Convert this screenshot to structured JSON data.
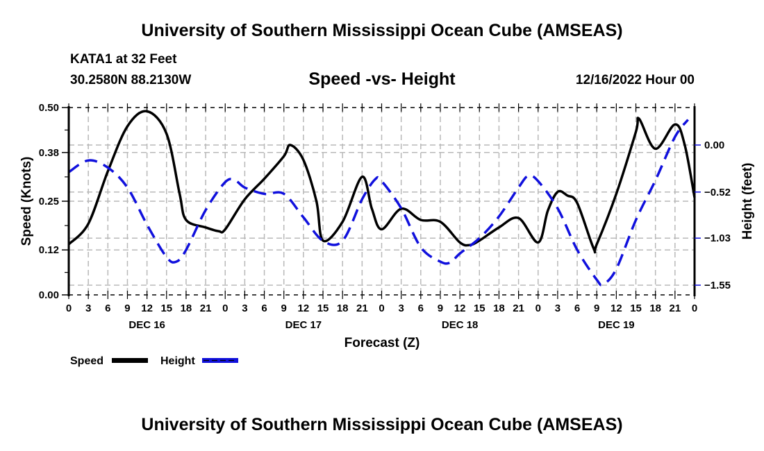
{
  "header": {
    "main_title": "University of Southern Mississippi Ocean Cube (AMSEAS)",
    "station": "KATA1 at 32 Feet",
    "coords": "30.2580N  88.2130W",
    "subtitle": "Speed -vs- Height",
    "datetime": "12/16/2022 Hour 00"
  },
  "footer": {
    "title": "University of Southern Mississippi Ocean Cube (AMSEAS)"
  },
  "colors": {
    "speed": "#000000",
    "height": "#0000cc",
    "grid": "#b8b8b8"
  },
  "chart_data": {
    "type": "line",
    "title": "Speed -vs- Height",
    "xlabel": "Forecast (Z)",
    "ylabel": "Speed (Knots)",
    "y2label": "Height (feet)",
    "grid": true,
    "legend_position": "bottom-left",
    "x_unit": "forecast hour from 12/16/2022 00Z",
    "xlim": [
      0,
      96
    ],
    "ylim": [
      0,
      0.5
    ],
    "y2lim": [
      -1.55,
      0.0
    ],
    "x_ticks": [
      0,
      3,
      6,
      9,
      12,
      15,
      18,
      21,
      24,
      27,
      30,
      33,
      36,
      39,
      42,
      45,
      48,
      51,
      54,
      57,
      60,
      63,
      66,
      69,
      72,
      75,
      78,
      81,
      84,
      87,
      90,
      93,
      96
    ],
    "x_tick_labels": [
      "0",
      "3",
      "6",
      "9",
      "12",
      "15",
      "18",
      "21",
      "0",
      "3",
      "6",
      "9",
      "12",
      "15",
      "18",
      "21",
      "0",
      "3",
      "6",
      "9",
      "12",
      "15",
      "18",
      "21",
      "0",
      "3",
      "6",
      "9",
      "12",
      "15",
      "18",
      "21",
      "0"
    ],
    "day_labels": [
      {
        "hour": 12,
        "label": "DEC 16"
      },
      {
        "hour": 36,
        "label": "DEC 17"
      },
      {
        "hour": 60,
        "label": "DEC 18"
      },
      {
        "hour": 84,
        "label": "DEC 19"
      }
    ],
    "y_ticks": [
      0.0,
      0.12,
      0.25,
      0.38,
      0.5
    ],
    "y_tick_labels": [
      "0.00",
      "0.12",
      "0.25",
      "0.38",
      "0.50"
    ],
    "y2_ticks": [
      0.0,
      -0.52,
      -1.03,
      -1.55
    ],
    "y2_tick_labels": [
      "0.00",
      "−0.52",
      "−1.03",
      "−1.55"
    ],
    "series": [
      {
        "name": "Speed",
        "axis": "left",
        "style": "solid",
        "x": [
          0,
          3,
          6,
          9,
          12,
          15,
          17,
          18,
          21,
          23,
          24,
          27,
          30,
          33,
          34,
          36,
          38,
          39,
          42,
          45,
          46.5,
          48,
          51,
          54,
          57,
          60,
          61.5,
          63,
          66,
          69,
          72,
          73.5,
          75,
          76.5,
          78,
          80.5,
          81,
          84,
          87,
          87.5,
          90,
          93,
          94.5,
          96
        ],
        "values": [
          0.135,
          0.19,
          0.33,
          0.45,
          0.49,
          0.43,
          0.27,
          0.2,
          0.18,
          0.17,
          0.175,
          0.255,
          0.31,
          0.37,
          0.4,
          0.36,
          0.25,
          0.145,
          0.195,
          0.315,
          0.23,
          0.175,
          0.23,
          0.2,
          0.195,
          0.14,
          0.133,
          0.145,
          0.18,
          0.205,
          0.14,
          0.225,
          0.275,
          0.265,
          0.245,
          0.125,
          0.135,
          0.27,
          0.435,
          0.47,
          0.39,
          0.455,
          0.4,
          0.26
        ]
      },
      {
        "name": "Height",
        "axis": "right",
        "style": "dashed",
        "x": [
          0,
          3,
          6,
          9,
          12,
          15,
          16.5,
          18,
          21,
          24,
          25.5,
          27,
          30,
          33,
          36,
          39,
          42,
          45,
          47,
          48,
          51,
          54,
          57,
          58.5,
          60,
          63,
          66,
          69,
          70.5,
          72,
          75,
          78,
          81,
          82,
          84,
          87,
          90,
          93,
          95
        ],
        "values": [
          -0.3,
          -0.17,
          -0.25,
          -0.47,
          -0.88,
          -1.24,
          -1.29,
          -1.16,
          -0.72,
          -0.41,
          -0.39,
          -0.47,
          -0.54,
          -0.54,
          -0.8,
          -1.06,
          -1.06,
          -0.6,
          -0.38,
          -0.4,
          -0.7,
          -1.13,
          -1.29,
          -1.3,
          -1.2,
          -1.03,
          -0.79,
          -0.47,
          -0.34,
          -0.4,
          -0.7,
          -1.16,
          -1.49,
          -1.54,
          -1.37,
          -0.83,
          -0.39,
          0.09,
          0.28
        ]
      }
    ],
    "legend": [
      {
        "label": "Speed",
        "style": "solid"
      },
      {
        "label": "Height",
        "style": "dashed"
      }
    ]
  }
}
